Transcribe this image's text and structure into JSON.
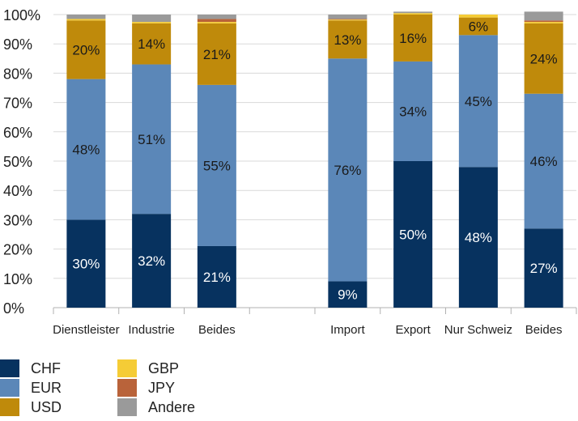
{
  "chart_data": {
    "type": "bar",
    "stacked": true,
    "categories": [
      "Dienstleister",
      "Industrie",
      "Beides",
      "",
      "Import",
      "Export",
      "Nur Schweiz",
      "Beides"
    ],
    "series": [
      {
        "name": "CHF",
        "color": "#07325f",
        "values": [
          30,
          32,
          21,
          null,
          9,
          50,
          48,
          27
        ]
      },
      {
        "name": "EUR",
        "color": "#5b87b8",
        "values": [
          48,
          51,
          55,
          null,
          76,
          34,
          45,
          46
        ]
      },
      {
        "name": "USD",
        "color": "#bf8a0b",
        "values": [
          20,
          14,
          21,
          null,
          13,
          16,
          6,
          24
        ]
      },
      {
        "name": "GBP",
        "color": "#f5cc36",
        "values": [
          0.5,
          0.5,
          0.5,
          null,
          0.3,
          0.5,
          1,
          0.5
        ]
      },
      {
        "name": "JPY",
        "color": "#b9633a",
        "values": [
          0,
          0,
          1,
          null,
          0.2,
          0,
          0,
          0.5
        ]
      },
      {
        "name": "Andere",
        "color": "#9a9a9a",
        "values": [
          1.5,
          2.5,
          1.5,
          null,
          1.5,
          0.5,
          0,
          3
        ]
      }
    ],
    "data_labels": [
      [
        "30%",
        "48%",
        "20%"
      ],
      [
        "32%",
        "51%",
        "14%"
      ],
      [
        "21%",
        "55%",
        "21%"
      ],
      [],
      [
        "9%",
        "76%",
        "13%"
      ],
      [
        "50%",
        "34%",
        "16%"
      ],
      [
        "48%",
        "45%",
        "6%"
      ],
      [
        "27%",
        "46%",
        "24%"
      ]
    ],
    "ylim": [
      0,
      100
    ],
    "yticks": [
      "0%",
      "10%",
      "20%",
      "30%",
      "40%",
      "50%",
      "60%",
      "70%",
      "80%",
      "90%",
      "100%"
    ],
    "grid": true,
    "legend": "bottom-left"
  }
}
